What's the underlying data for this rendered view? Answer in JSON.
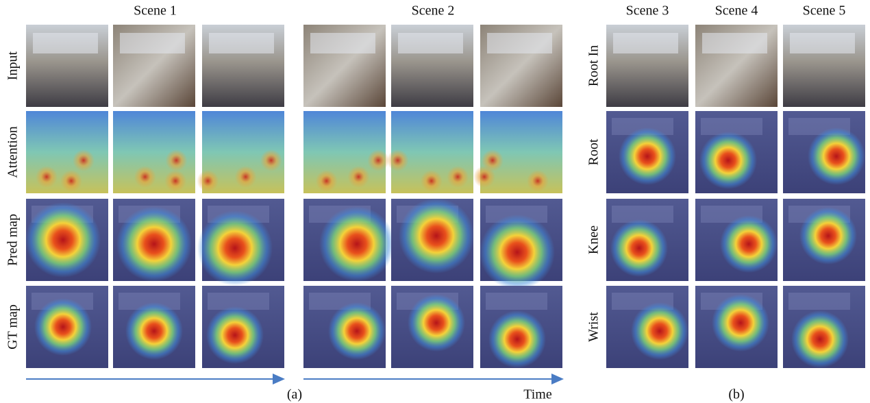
{
  "panel_a": {
    "scenes": [
      "Scene 1",
      "Scene 2"
    ],
    "rows": [
      "Input",
      "Attention",
      "Pred map",
      "GT map"
    ],
    "caption": "(a)",
    "axis_label": "Time"
  },
  "panel_b": {
    "scenes": [
      "Scene 3",
      "Scene 4",
      "Scene 5"
    ],
    "rows": [
      "Root In",
      "Root",
      "Knee",
      "Wrist"
    ],
    "caption": "(b)"
  }
}
